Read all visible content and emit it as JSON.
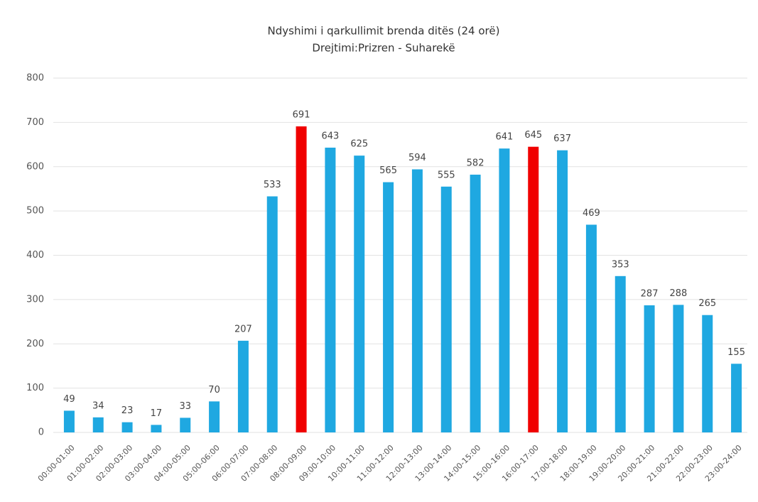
{
  "chart_data": {
    "type": "bar",
    "title": "Ndyshimi i qarkullimit brenda ditës (24 orë)",
    "subtitle": "Drejtimi:Prizren - Suharekë",
    "categories": [
      "00:00-01:00",
      "01:00-02:00",
      "02:00-03:00",
      "03:00-04:00",
      "04:00-05:00",
      "05:00-06:00",
      "06:00-07:00",
      "07:00-08:00",
      "08:00-09:00",
      "09:00-10:00",
      "10:00-11:00",
      "11:00-12:00",
      "12:00-13:00",
      "13:00-14:00",
      "14:00-15:00",
      "15:00-16:00",
      "16:00-17:00",
      "17:00-18:00",
      "18:00-19:00",
      "19:00-20:00",
      "20:00-21:00",
      "21:00-22:00",
      "22:00-23:00",
      "23:00-24:00"
    ],
    "values": [
      49,
      34,
      23,
      17,
      33,
      70,
      207,
      533,
      691,
      643,
      625,
      565,
      594,
      555,
      582,
      641,
      645,
      637,
      469,
      353,
      287,
      288,
      265,
      155
    ],
    "colors": [
      "#1fa8e1",
      "#1fa8e1",
      "#1fa8e1",
      "#1fa8e1",
      "#1fa8e1",
      "#1fa8e1",
      "#1fa8e1",
      "#1fa8e1",
      "#f00000",
      "#1fa8e1",
      "#1fa8e1",
      "#1fa8e1",
      "#1fa8e1",
      "#1fa8e1",
      "#1fa8e1",
      "#1fa8e1",
      "#f00000",
      "#1fa8e1",
      "#1fa8e1",
      "#1fa8e1",
      "#1fa8e1",
      "#1fa8e1",
      "#1fa8e1",
      "#1fa8e1"
    ],
    "ylim": [
      0,
      800
    ],
    "yticks": [
      0,
      100,
      200,
      300,
      400,
      500,
      600,
      700,
      800
    ],
    "grid": true
  }
}
